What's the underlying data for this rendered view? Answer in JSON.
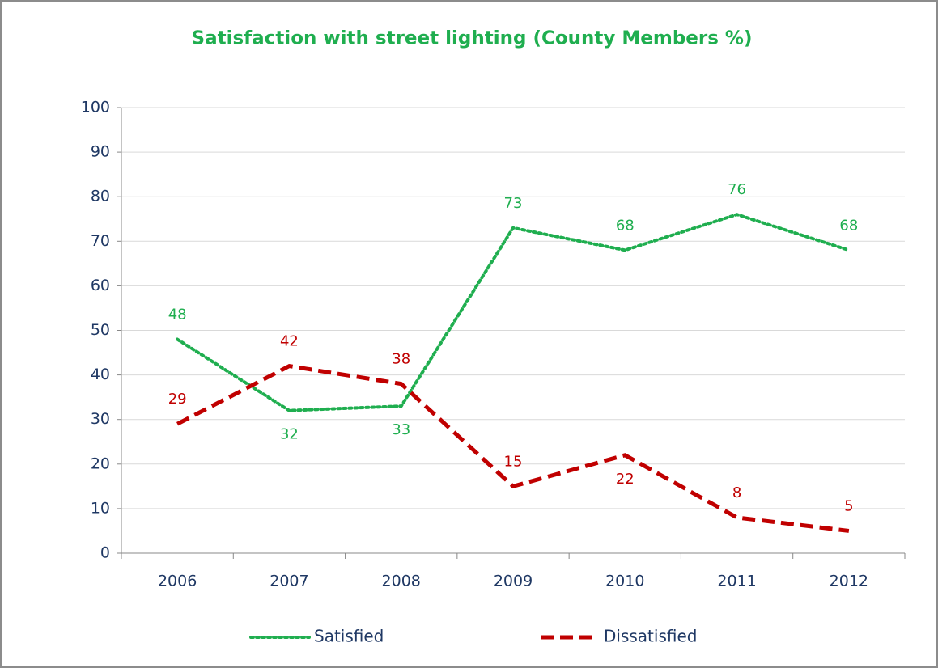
{
  "chart_data": {
    "type": "line",
    "title": "Satisfaction with street lighting (County Members %)",
    "categories": [
      "2006",
      "2007",
      "2008",
      "2009",
      "2010",
      "2011",
      "2012"
    ],
    "series": [
      {
        "name": "Satisfied",
        "color": "#1fae4f",
        "dash": "dotted",
        "values": [
          48,
          32,
          33,
          73,
          68,
          76,
          68
        ]
      },
      {
        "name": "Dissatisfied",
        "color": "#c00000",
        "dash": "dashed",
        "values": [
          29,
          42,
          38,
          15,
          22,
          8,
          5
        ]
      }
    ],
    "ylim": [
      0,
      100
    ],
    "yticks": [
      0,
      10,
      20,
      30,
      40,
      50,
      60,
      70,
      80,
      90,
      100
    ],
    "grid": true,
    "legend": "bottom"
  }
}
